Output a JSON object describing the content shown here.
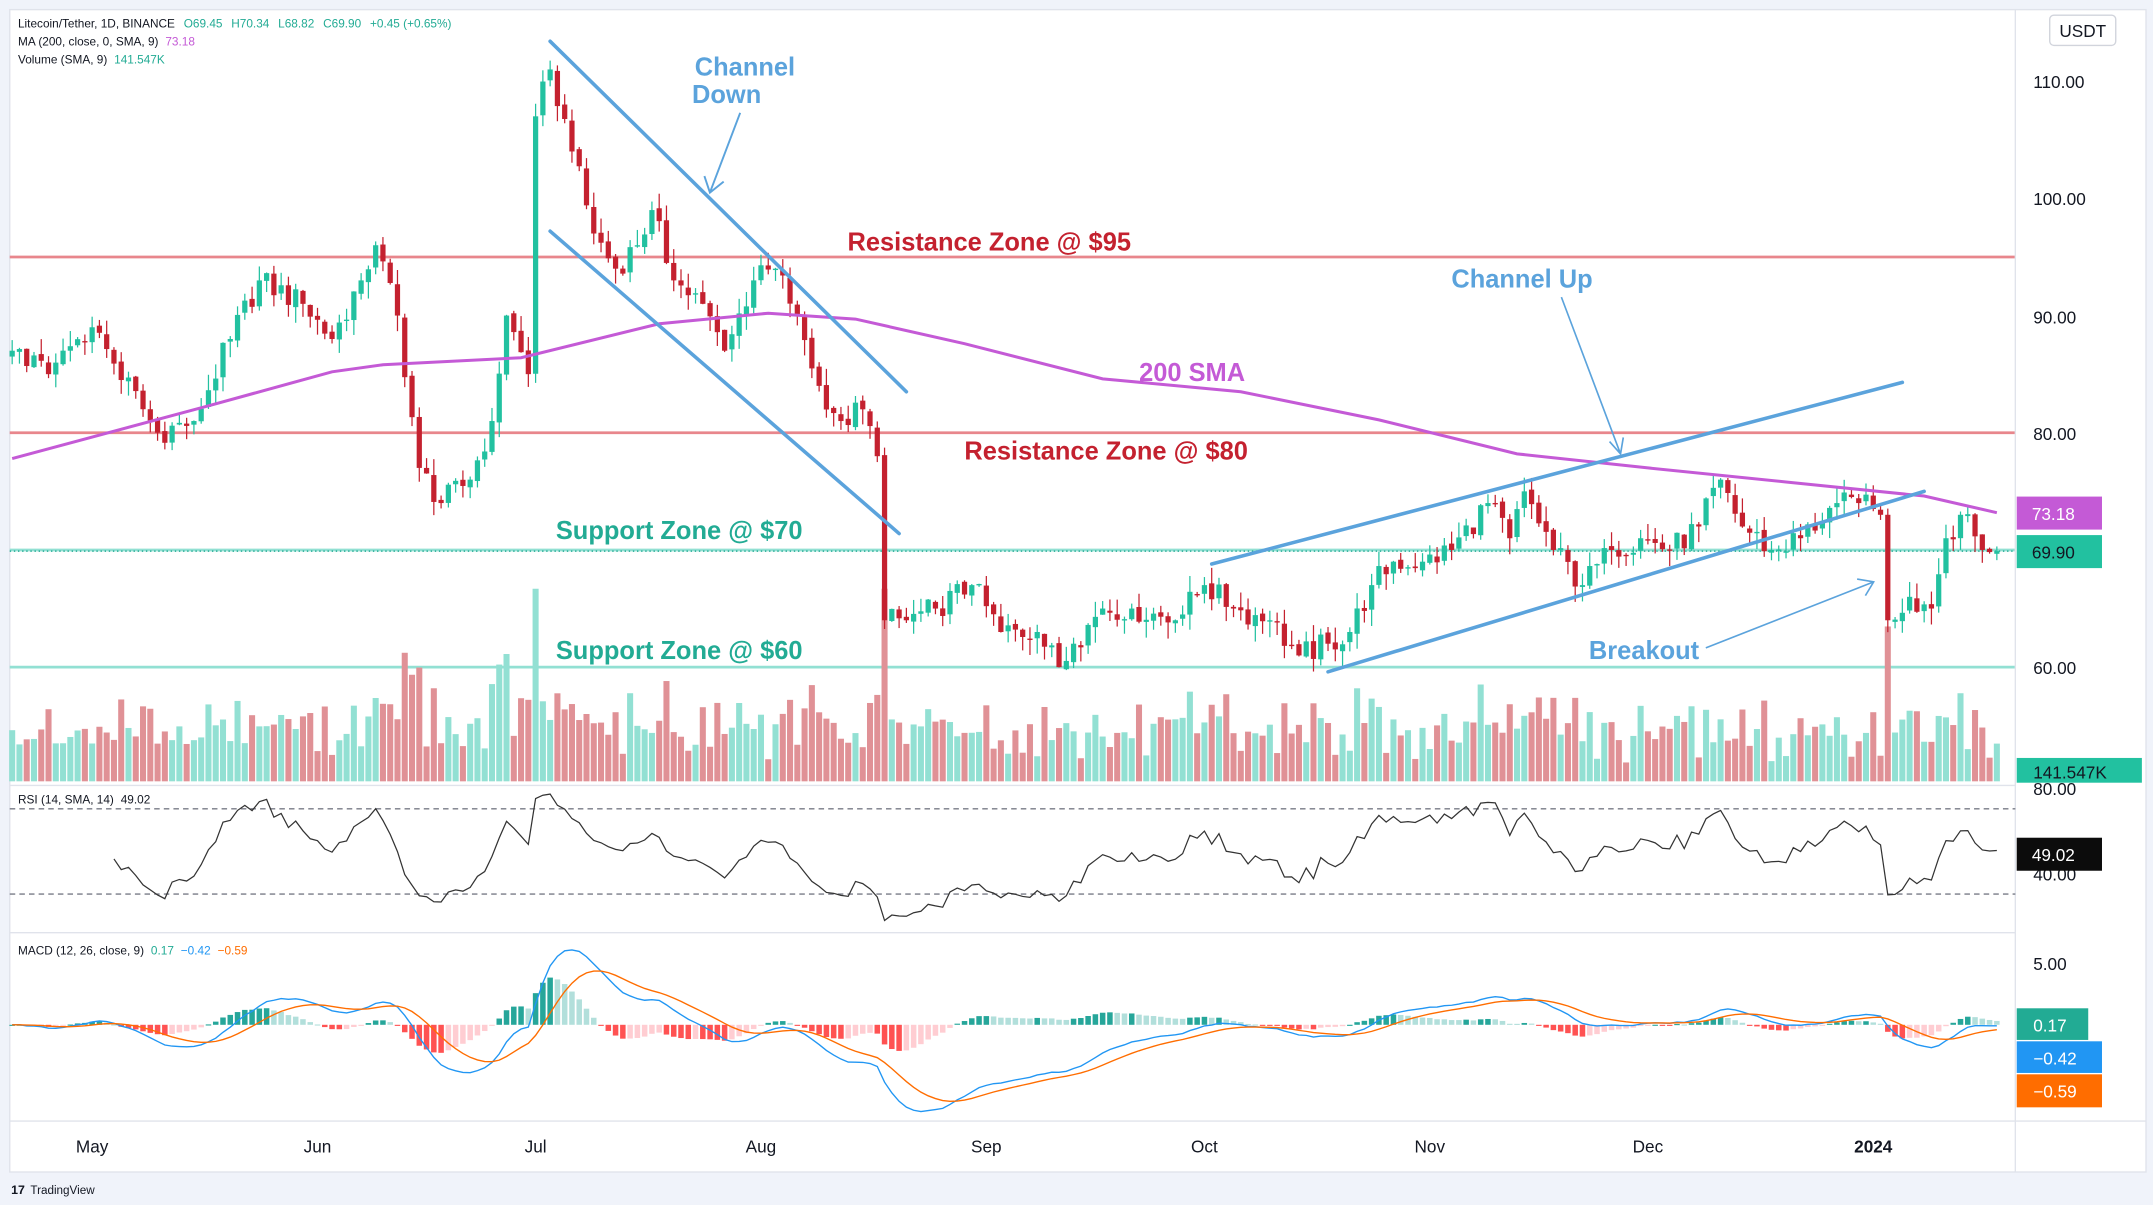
{
  "legend": {
    "symbol": "Litecoin/Tether, 1D, BINANCE",
    "open": "O69.45",
    "high": "H70.34",
    "low": "L68.82",
    "close": "C69.90",
    "change": "+0.45 (+0.65%)",
    "ma_label": "MA (200, close, 0, SMA, 9)",
    "ma_value": "73.18",
    "volume_label": "Volume (SMA, 9)",
    "volume_value": "141.547K",
    "rsi_label": "RSI (14, SMA, 14)",
    "rsi_value": "49.02",
    "macd_label": "MACD (12, 26, close, 9)",
    "macd_hist": "0.17",
    "macd_line": "−0.42",
    "macd_signal": "−0.59"
  },
  "currency_button": "USDT",
  "price_axis": [
    "110.00",
    "100.00",
    "90.00",
    "80.00",
    "60.00"
  ],
  "rsi_axis": [
    "80.00",
    "40.00"
  ],
  "macd_axis": [
    "5.00"
  ],
  "badges": {
    "sma": "73.18",
    "price": "69.90",
    "volume": "141.547K",
    "rsi": "49.02",
    "hist": "0.17",
    "macd": "−0.42",
    "signal": "−0.59"
  },
  "time_axis": [
    "May",
    "Jun",
    "Jul",
    "Aug",
    "Sep",
    "Oct",
    "Nov",
    "Dec",
    "2024"
  ],
  "annotations": {
    "channel_down": [
      "Channel",
      "Down"
    ],
    "channel_up": "Channel Up",
    "sma": "200 SMA",
    "res95": "Resistance Zone @ $95",
    "res80": "Resistance Zone @ $80",
    "sup70": "Support Zone @ $70",
    "sup60": "Support Zone @ $60",
    "breakout": "Breakout"
  },
  "branding": "TradingView",
  "colors": {
    "up": "#22c1a0",
    "down": "#c4212f",
    "vol_up": "#92e0d3",
    "vol_down": "#e09196",
    "sma": "#c45ad6",
    "trend": "#5ba3dc",
    "resistance": "#e8868c",
    "support": "#92e0d3",
    "macd": "#2196f3",
    "signal": "#ff6d00"
  },
  "chart_data": {
    "type": "candlestick",
    "symbol": "LTC/USDT",
    "interval": "1D",
    "ylim": [
      57,
      115
    ],
    "close_anchors": [
      [
        "2023-04-20",
        87
      ],
      [
        "2023-04-25",
        85
      ],
      [
        "2023-05-01",
        89
      ],
      [
        "2023-05-10",
        80
      ],
      [
        "2023-05-15",
        81
      ],
      [
        "2023-05-20",
        88
      ],
      [
        "2023-05-24",
        93
      ],
      [
        "2023-05-30",
        91
      ],
      [
        "2023-06-03",
        88
      ],
      [
        "2023-06-07",
        93
      ],
      [
        "2023-06-09",
        96
      ],
      [
        "2023-06-12",
        90
      ],
      [
        "2023-06-15",
        77
      ],
      [
        "2023-06-18",
        74
      ],
      [
        "2023-06-22",
        76
      ],
      [
        "2023-06-25",
        81
      ],
      [
        "2023-06-27",
        90
      ],
      [
        "2023-06-30",
        85
      ],
      [
        "2023-07-01",
        107
      ],
      [
        "2023-07-03",
        111
      ],
      [
        "2023-07-06",
        104
      ],
      [
        "2023-07-09",
        97
      ],
      [
        "2023-07-12",
        94
      ],
      [
        "2023-07-15",
        96
      ],
      [
        "2023-07-17",
        99
      ],
      [
        "2023-07-20",
        93
      ],
      [
        "2023-07-24",
        91
      ],
      [
        "2023-07-27",
        87
      ],
      [
        "2023-07-31",
        93
      ],
      [
        "2023-08-03",
        94
      ],
      [
        "2023-08-06",
        90
      ],
      [
        "2023-08-09",
        84
      ],
      [
        "2023-08-12",
        81
      ],
      [
        "2023-08-15",
        82
      ],
      [
        "2023-08-17",
        78
      ],
      [
        "2023-08-18",
        64
      ],
      [
        "2023-08-21",
        64
      ],
      [
        "2023-08-25",
        65
      ],
      [
        "2023-08-30",
        67
      ],
      [
        "2023-09-03",
        63
      ],
      [
        "2023-09-08",
        63
      ],
      [
        "2023-09-11",
        60
      ],
      [
        "2023-09-13",
        62
      ],
      [
        "2023-09-17",
        65
      ],
      [
        "2023-09-21",
        65
      ],
      [
        "2023-09-27",
        64
      ],
      [
        "2023-10-01",
        67
      ],
      [
        "2023-10-05",
        65
      ],
      [
        "2023-10-10",
        64
      ],
      [
        "2023-10-14",
        61
      ],
      [
        "2023-10-18",
        62
      ],
      [
        "2023-10-21",
        63
      ],
      [
        "2023-10-24",
        67
      ],
      [
        "2023-10-27",
        69
      ],
      [
        "2023-10-31",
        69
      ],
      [
        "2023-11-04",
        70
      ],
      [
        "2023-11-09",
        74
      ],
      [
        "2023-11-12",
        71
      ],
      [
        "2023-11-14",
        75
      ],
      [
        "2023-11-18",
        70
      ],
      [
        "2023-11-22",
        67
      ],
      [
        "2023-11-26",
        70
      ],
      [
        "2023-11-30",
        71
      ],
      [
        "2023-12-04",
        70
      ],
      [
        "2023-12-08",
        72
      ],
      [
        "2023-12-11",
        76
      ],
      [
        "2023-12-14",
        72
      ],
      [
        "2023-12-18",
        70
      ],
      [
        "2023-12-22",
        71
      ],
      [
        "2023-12-27",
        74
      ],
      [
        "2023-12-30",
        74
      ],
      [
        "2024-01-02",
        73
      ],
      [
        "2024-01-03",
        64
      ],
      [
        "2024-01-06",
        66
      ],
      [
        "2024-01-09",
        65
      ],
      [
        "2024-01-11",
        71
      ],
      [
        "2024-01-13",
        73
      ],
      [
        "2024-01-16",
        70
      ],
      [
        "2024-01-18",
        69.9
      ]
    ],
    "sma200": [
      [
        "2023-04-20",
        77.8
      ],
      [
        "2023-05-17",
        82.3
      ],
      [
        "2023-06-03",
        85.2
      ],
      [
        "2023-06-10",
        85.8
      ],
      [
        "2023-06-29",
        86.4
      ],
      [
        "2023-07-18",
        89.3
      ],
      [
        "2023-08-02",
        90.2
      ],
      [
        "2023-08-14",
        89.7
      ],
      [
        "2023-08-29",
        87.6
      ],
      [
        "2023-09-17",
        84.6
      ],
      [
        "2023-10-06",
        83.5
      ],
      [
        "2023-10-25",
        81.1
      ],
      [
        "2023-11-13",
        78.2
      ],
      [
        "2023-12-01",
        77.0
      ],
      [
        "2023-12-20",
        75.8
      ],
      [
        "2024-01-08",
        74.6
      ],
      [
        "2024-01-18",
        73.18
      ]
    ],
    "horizontal_levels": [
      {
        "price": 95,
        "kind": "resistance"
      },
      {
        "price": 80,
        "kind": "resistance"
      },
      {
        "price": 70,
        "kind": "support"
      },
      {
        "price": 60,
        "kind": "support"
      }
    ],
    "trendlines": {
      "channel_down_upper": [
        [
          "2023-07-03",
          113.4
        ],
        [
          "2023-08-21",
          83.5
        ]
      ],
      "channel_down_lower": [
        [
          "2023-07-03",
          97.2
        ],
        [
          "2023-08-20",
          71.4
        ]
      ],
      "channel_up_upper": [
        [
          "2023-10-02",
          68.8
        ],
        [
          "2024-01-05",
          84.3
        ]
      ],
      "channel_up_lower": [
        [
          "2023-10-18",
          59.6
        ],
        [
          "2024-01-08",
          75.0
        ]
      ]
    },
    "last": {
      "open": 69.45,
      "high": 70.34,
      "low": 68.82,
      "close": 69.9,
      "sma200": 73.18,
      "volume_sma": "141.547K",
      "rsi": 49.02,
      "macd_hist": 0.17,
      "macd": -0.42,
      "signal": -0.59
    }
  }
}
